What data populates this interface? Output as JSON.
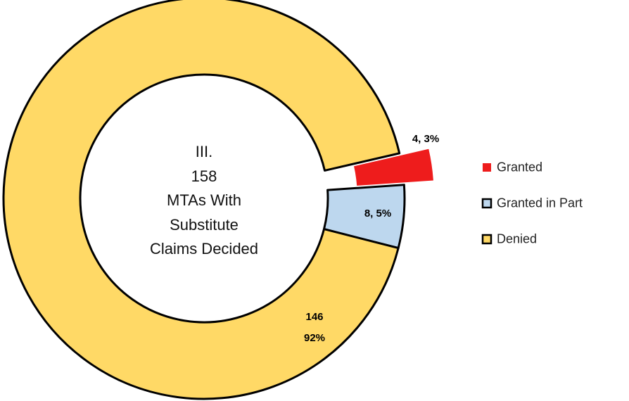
{
  "chart_data": {
    "type": "donut",
    "title": "III.\n158\nMTAs With\nSubstitute\nClaims Decided",
    "categories": [
      "Granted",
      "Granted in Part",
      "Denied"
    ],
    "values": [
      4,
      8,
      146
    ],
    "value_labels": [
      "4, 3%",
      "8, 5%",
      "146\n92%"
    ],
    "colors": [
      "#ee1c1c",
      "#bdd7ee",
      "#ffd966"
    ],
    "legend": "right"
  }
}
